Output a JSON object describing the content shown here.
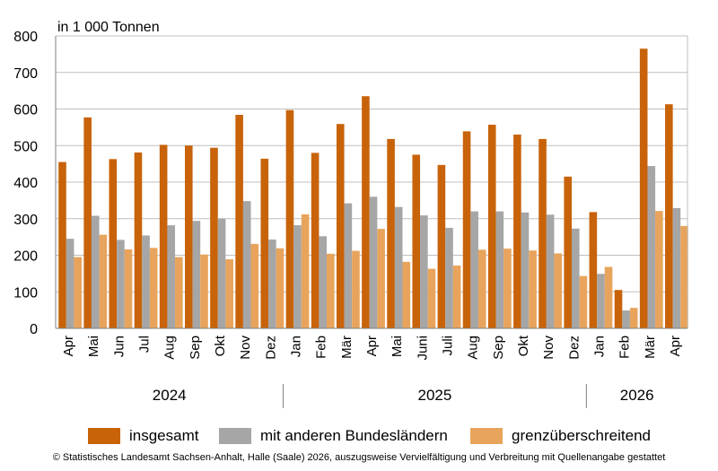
{
  "chart_data": {
    "type": "bar",
    "unit_label": "in 1 000 Tonnen",
    "ylim": [
      0,
      800
    ],
    "yticks": [
      0,
      100,
      200,
      300,
      400,
      500,
      600,
      700,
      800
    ],
    "grid": true,
    "legend_position": "bottom",
    "categories": [
      "Apr",
      "Mai",
      "Jun",
      "Jul",
      "Aug",
      "Sep",
      "Okt",
      "Nov",
      "Dez",
      "Jan",
      "Feb",
      "Mär",
      "Apr",
      "Mai",
      "Juni",
      "Juli",
      "Aug",
      "Sep",
      "Okt",
      "Nov",
      "Dez",
      "Jan",
      "Feb",
      "Mär",
      "Apr"
    ],
    "years": [
      {
        "label": "2024",
        "start": 0,
        "end": 8
      },
      {
        "label": "2025",
        "start": 9,
        "end": 20
      },
      {
        "label": "2026",
        "start": 21,
        "end": 24
      }
    ],
    "series": [
      {
        "name": "insgesamt",
        "color": "#c8630a",
        "values": [
          455,
          577,
          463,
          481,
          502,
          500,
          494,
          584,
          464,
          597,
          480,
          559,
          635,
          518,
          475,
          447,
          539,
          557,
          530,
          518,
          415,
          318,
          105,
          765,
          613
        ]
      },
      {
        "name": "mit anderen Bundesländern",
        "color": "#a6a6a6",
        "values": [
          245,
          308,
          242,
          254,
          282,
          294,
          300,
          348,
          243,
          282,
          252,
          342,
          360,
          332,
          309,
          275,
          320,
          320,
          317,
          311,
          273,
          149,
          49,
          444,
          329
        ]
      },
      {
        "name": "grenzüberschreitend",
        "color": "#e8a45c",
        "values": [
          195,
          256,
          216,
          220,
          195,
          202,
          189,
          231,
          219,
          312,
          204,
          212,
          272,
          182,
          163,
          172,
          215,
          218,
          213,
          205,
          143,
          168,
          56,
          321,
          280
        ]
      }
    ]
  },
  "footer": "© Statistisches Landesamt Sachsen-Anhalt, Halle (Saale) 2026, auszugsweise Vervielfältigung und Verbreitung mit Quellenangabe gestattet"
}
